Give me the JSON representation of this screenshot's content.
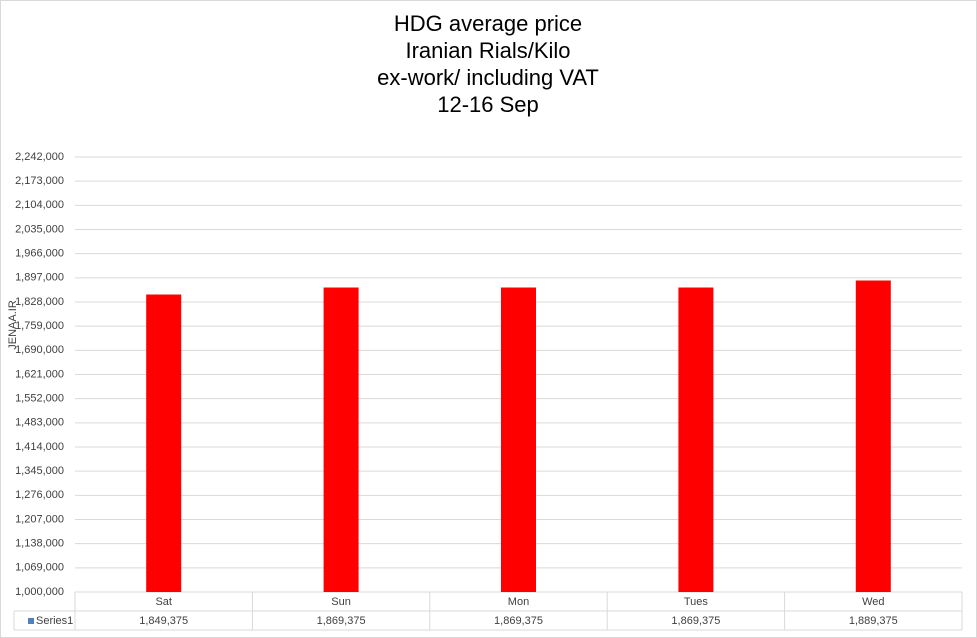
{
  "chart_data": {
    "type": "bar",
    "title": [
      "HDG average price",
      "Iranian Rials/Kilo",
      "ex-work/ including VAT",
      "12-16 Sep"
    ],
    "watermark": "JENAA.IR",
    "categories": [
      "Sat",
      "Sun",
      "Mon",
      "Tues",
      "Wed"
    ],
    "series": [
      {
        "name": "Series1",
        "color": "#ff0000",
        "legend_color": "#4f81bd",
        "values": [
          1849375,
          1869375,
          1869375,
          1869375,
          1889375
        ],
        "value_labels": [
          "1,849,375",
          "1,869,375",
          "1,869,375",
          "1,869,375",
          "1,889,375"
        ]
      }
    ],
    "ylim": [
      1000000,
      2242000
    ],
    "yticks": [
      {
        "value": 1000000,
        "label": "1,000,000"
      },
      {
        "value": 1069000,
        "label": "1,069,000"
      },
      {
        "value": 1138000,
        "label": "1,138,000"
      },
      {
        "value": 1207000,
        "label": "1,207,000"
      },
      {
        "value": 1276000,
        "label": "1,276,000"
      },
      {
        "value": 1345000,
        "label": "1,345,000"
      },
      {
        "value": 1414000,
        "label": "1,414,000"
      },
      {
        "value": 1483000,
        "label": "1,483,000"
      },
      {
        "value": 1552000,
        "label": "1,552,000"
      },
      {
        "value": 1621000,
        "label": "1,621,000"
      },
      {
        "value": 1690000,
        "label": "1,690,000"
      },
      {
        "value": 1759000,
        "label": "1,759,000"
      },
      {
        "value": 1828000,
        "label": "1,828,000"
      },
      {
        "value": 1897000,
        "label": "1,897,000"
      },
      {
        "value": 1966000,
        "label": "1,966,000"
      },
      {
        "value": 2035000,
        "label": "2,035,000"
      },
      {
        "value": 2104000,
        "label": "2,104,000"
      },
      {
        "value": 2173000,
        "label": "2,173,000"
      },
      {
        "value": 2242000,
        "label": "2,242,000"
      }
    ],
    "grid": true
  }
}
